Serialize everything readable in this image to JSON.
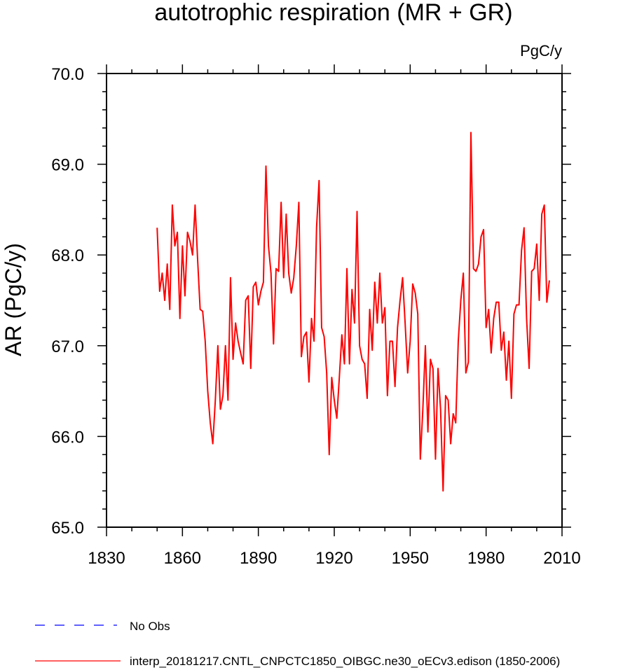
{
  "chart_data": {
    "type": "line",
    "title": "autotrophic respiration (MR + GR)",
    "units": "PgC/y",
    "xlabel": "",
    "ylabel": "AR  (PgC/y)",
    "xlim": [
      1830,
      2010
    ],
    "ylim": [
      65.0,
      70.0
    ],
    "x_ticks": [
      1830,
      1860,
      1890,
      1920,
      1950,
      1980,
      2010
    ],
    "y_ticks": [
      65.0,
      66.0,
      67.0,
      68.0,
      69.0,
      70.0
    ],
    "x_tick_labels": [
      "1830",
      "1860",
      "1890",
      "1920",
      "1950",
      "1980",
      "2010"
    ],
    "y_tick_labels": [
      "65.0",
      "66.0",
      "67.0",
      "68.0",
      "69.0",
      "70.0"
    ],
    "series": [
      {
        "name": "interp_20181217.CNTL_CNPCTC1850_OIBGC.ne30_oECv3.edison (1850-2006)",
        "color": "#ff0000",
        "x_start": 1850,
        "values": [
          68.3,
          67.6,
          67.8,
          67.5,
          67.9,
          67.4,
          68.55,
          68.1,
          68.25,
          67.3,
          68.1,
          67.55,
          68.25,
          68.15,
          68.0,
          68.55,
          67.95,
          67.4,
          67.38,
          67.05,
          66.5,
          66.15,
          65.92,
          66.4,
          67.0,
          66.3,
          66.45,
          67.0,
          66.4,
          67.75,
          66.85,
          67.25,
          67.05,
          66.92,
          66.8,
          67.5,
          67.55,
          66.75,
          67.65,
          67.7,
          67.45,
          67.6,
          67.7,
          68.98,
          68.1,
          67.8,
          67.02,
          67.85,
          67.82,
          68.58,
          67.75,
          68.45,
          67.8,
          67.58,
          67.75,
          68.1,
          68.58,
          66.88,
          67.1,
          67.15,
          66.6,
          67.3,
          67.05,
          68.3,
          68.82,
          67.2,
          67.1,
          66.7,
          65.8,
          66.65,
          66.4,
          66.2,
          66.65,
          67.12,
          66.8,
          67.85,
          66.8,
          67.62,
          67.25,
          68.48,
          67.0,
          66.85,
          66.8,
          66.42,
          67.4,
          66.95,
          67.7,
          67.25,
          67.8,
          67.25,
          67.42,
          66.45,
          67.05,
          67.05,
          66.55,
          67.2,
          67.5,
          67.75,
          67.25,
          66.7,
          67.05,
          67.68,
          67.58,
          67.35,
          65.75,
          66.3,
          67.0,
          66.05,
          66.85,
          66.75,
          65.75,
          66.75,
          66.3,
          65.4,
          66.45,
          66.4,
          65.92,
          66.25,
          66.15,
          67.05,
          67.5,
          67.8,
          66.7,
          66.82,
          69.35,
          67.85,
          67.82,
          67.9,
          68.2,
          68.28,
          67.2,
          67.4,
          66.92,
          67.3,
          67.48,
          67.48,
          66.95,
          67.15,
          66.62,
          67.05,
          66.42,
          67.35,
          67.45,
          67.45,
          68.05,
          68.3,
          67.3,
          66.75,
          67.82,
          67.85,
          68.12,
          67.5,
          68.45,
          68.55,
          67.48,
          67.72
        ]
      }
    ],
    "legend": [
      {
        "label": "No Obs",
        "color": "#0000ff",
        "style": "dashed"
      },
      {
        "label": "interp_20181217.CNTL_CNPCTC1850_OIBGC.ne30_oECv3.edison (1850-2006)",
        "color": "#ff0000",
        "style": "solid"
      }
    ]
  }
}
